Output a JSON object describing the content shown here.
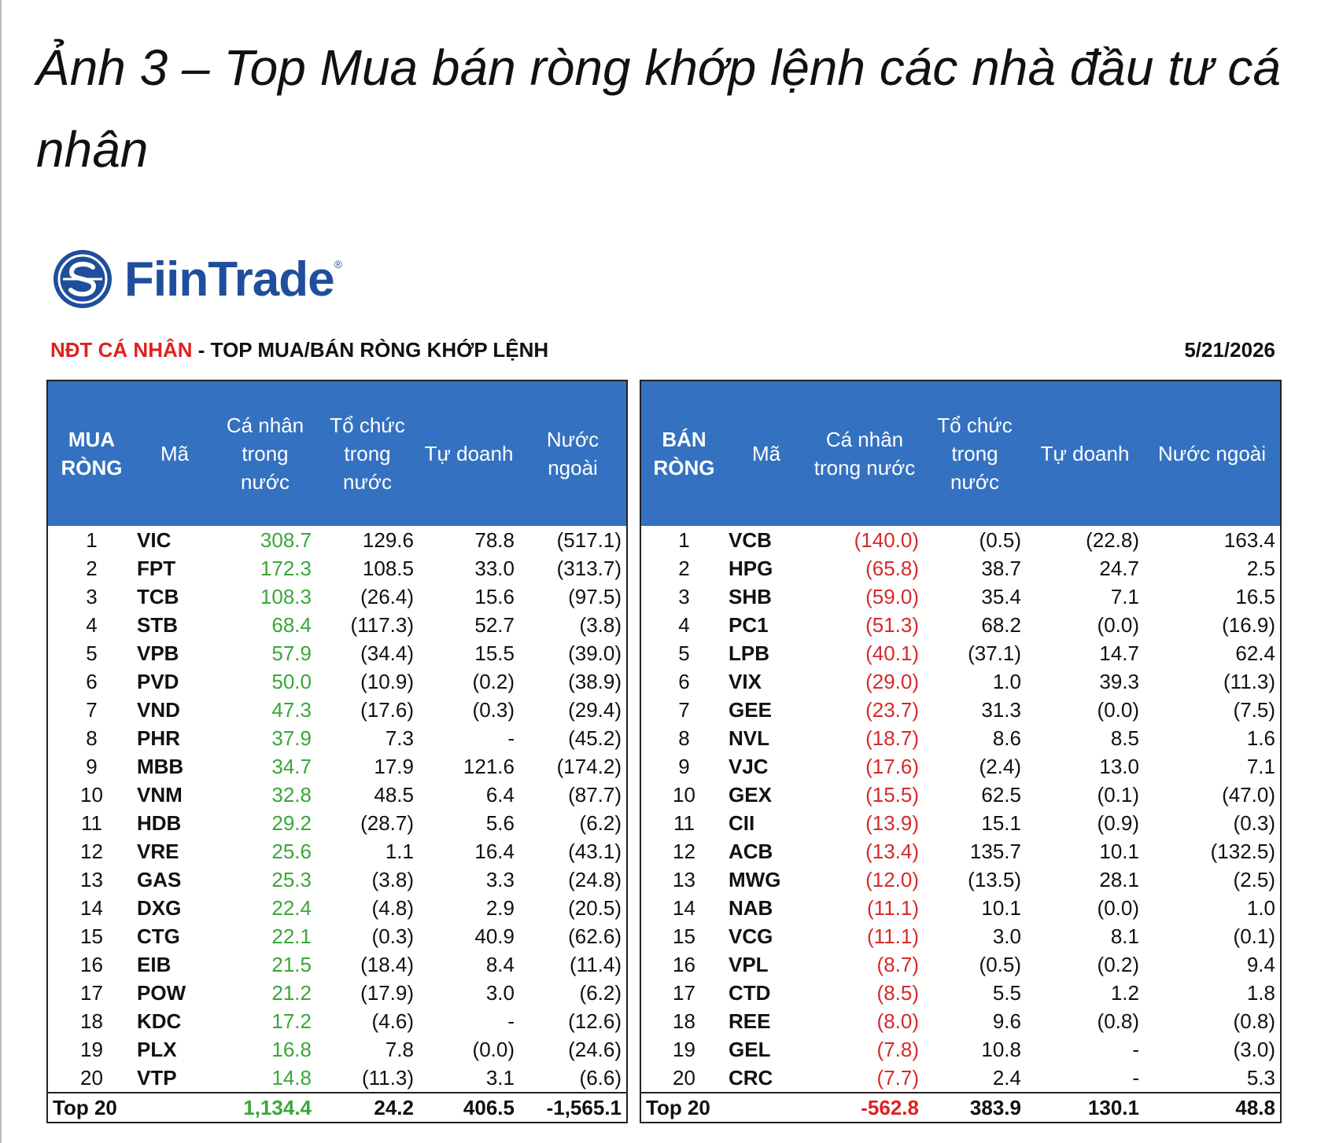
{
  "title": "Ảnh 3 – Top Mua bán ròng khớp lệnh các nhà đầu tư cá nhân",
  "logo": {
    "name": "FiinTrade",
    "mark": "®"
  },
  "header": {
    "highlight": "NĐT CÁ NHÂN",
    "text": " - TOP MUA/BÁN RÒNG KHỚP LỆNH",
    "date": "5/21/2026"
  },
  "left": {
    "columns": [
      "MUA RÒNG",
      "Mã",
      "Cá nhân trong nước",
      "Tổ chức trong nước",
      "Tự doanh",
      "Nước ngoài"
    ],
    "rows": [
      [
        "1",
        "VIC",
        "308.7",
        "129.6",
        "78.8",
        "(517.1)"
      ],
      [
        "2",
        "FPT",
        "172.3",
        "108.5",
        "33.0",
        "(313.7)"
      ],
      [
        "3",
        "TCB",
        "108.3",
        "(26.4)",
        "15.6",
        "(97.5)"
      ],
      [
        "4",
        "STB",
        "68.4",
        "(117.3)",
        "52.7",
        "(3.8)"
      ],
      [
        "5",
        "VPB",
        "57.9",
        "(34.4)",
        "15.5",
        "(39.0)"
      ],
      [
        "6",
        "PVD",
        "50.0",
        "(10.9)",
        "(0.2)",
        "(38.9)"
      ],
      [
        "7",
        "VND",
        "47.3",
        "(17.6)",
        "(0.3)",
        "(29.4)"
      ],
      [
        "8",
        "PHR",
        "37.9",
        "7.3",
        "-",
        "(45.2)"
      ],
      [
        "9",
        "MBB",
        "34.7",
        "17.9",
        "121.6",
        "(174.2)"
      ],
      [
        "10",
        "VNM",
        "32.8",
        "48.5",
        "6.4",
        "(87.7)"
      ],
      [
        "11",
        "HDB",
        "29.2",
        "(28.7)",
        "5.6",
        "(6.2)"
      ],
      [
        "12",
        "VRE",
        "25.6",
        "1.1",
        "16.4",
        "(43.1)"
      ],
      [
        "13",
        "GAS",
        "25.3",
        "(3.8)",
        "3.3",
        "(24.8)"
      ],
      [
        "14",
        "DXG",
        "22.4",
        "(4.8)",
        "2.9",
        "(20.5)"
      ],
      [
        "15",
        "CTG",
        "22.1",
        "(0.3)",
        "40.9",
        "(62.6)"
      ],
      [
        "16",
        "EIB",
        "21.5",
        "(18.4)",
        "8.4",
        "(11.4)"
      ],
      [
        "17",
        "POW",
        "21.2",
        "(17.9)",
        "3.0",
        "(6.2)"
      ],
      [
        "18",
        "KDC",
        "17.2",
        "(4.6)",
        "-",
        "(12.6)"
      ],
      [
        "19",
        "PLX",
        "16.8",
        "7.8",
        "(0.0)",
        "(24.6)"
      ],
      [
        "20",
        "VTP",
        "14.8",
        "(11.3)",
        "3.1",
        "(6.6)"
      ]
    ],
    "total": [
      "Top 20",
      "1,134.4",
      "24.2",
      "406.5",
      "-1,565.1"
    ]
  },
  "right": {
    "columns": [
      "BÁN RÒNG",
      "Mã",
      "Cá nhân trong nước",
      "Tổ chức trong nước",
      "Tự doanh",
      "Nước ngoài"
    ],
    "rows": [
      [
        "1",
        "VCB",
        "(140.0)",
        "(0.5)",
        "(22.8)",
        "163.4"
      ],
      [
        "2",
        "HPG",
        "(65.8)",
        "38.7",
        "24.7",
        "2.5"
      ],
      [
        "3",
        "SHB",
        "(59.0)",
        "35.4",
        "7.1",
        "16.5"
      ],
      [
        "4",
        "PC1",
        "(51.3)",
        "68.2",
        "(0.0)",
        "(16.9)"
      ],
      [
        "5",
        "LPB",
        "(40.1)",
        "(37.1)",
        "14.7",
        "62.4"
      ],
      [
        "6",
        "VIX",
        "(29.0)",
        "1.0",
        "39.3",
        "(11.3)"
      ],
      [
        "7",
        "GEE",
        "(23.7)",
        "31.3",
        "(0.0)",
        "(7.5)"
      ],
      [
        "8",
        "NVL",
        "(18.7)",
        "8.6",
        "8.5",
        "1.6"
      ],
      [
        "9",
        "VJC",
        "(17.6)",
        "(2.4)",
        "13.0",
        "7.1"
      ],
      [
        "10",
        "GEX",
        "(15.5)",
        "62.5",
        "(0.1)",
        "(47.0)"
      ],
      [
        "11",
        "CII",
        "(13.9)",
        "15.1",
        "(0.9)",
        "(0.3)"
      ],
      [
        "12",
        "ACB",
        "(13.4)",
        "135.7",
        "10.1",
        "(132.5)"
      ],
      [
        "13",
        "MWG",
        "(12.0)",
        "(13.5)",
        "28.1",
        "(2.5)"
      ],
      [
        "14",
        "NAB",
        "(11.1)",
        "10.1",
        "(0.0)",
        "1.0"
      ],
      [
        "15",
        "VCG",
        "(11.1)",
        "3.0",
        "8.1",
        "(0.1)"
      ],
      [
        "16",
        "VPL",
        "(8.7)",
        "(0.5)",
        "(0.2)",
        "9.4"
      ],
      [
        "17",
        "CTD",
        "(8.5)",
        "5.5",
        "1.2",
        "1.8"
      ],
      [
        "18",
        "REE",
        "(8.0)",
        "9.6",
        "(0.8)",
        "(0.8)"
      ],
      [
        "19",
        "GEL",
        "(7.8)",
        "10.8",
        "-",
        "(3.0)"
      ],
      [
        "20",
        "CRC",
        "(7.7)",
        "2.4",
        "-",
        "5.3"
      ]
    ],
    "total": [
      "Top 20",
      "-562.8",
      "383.9",
      "130.1",
      "48.8"
    ]
  }
}
